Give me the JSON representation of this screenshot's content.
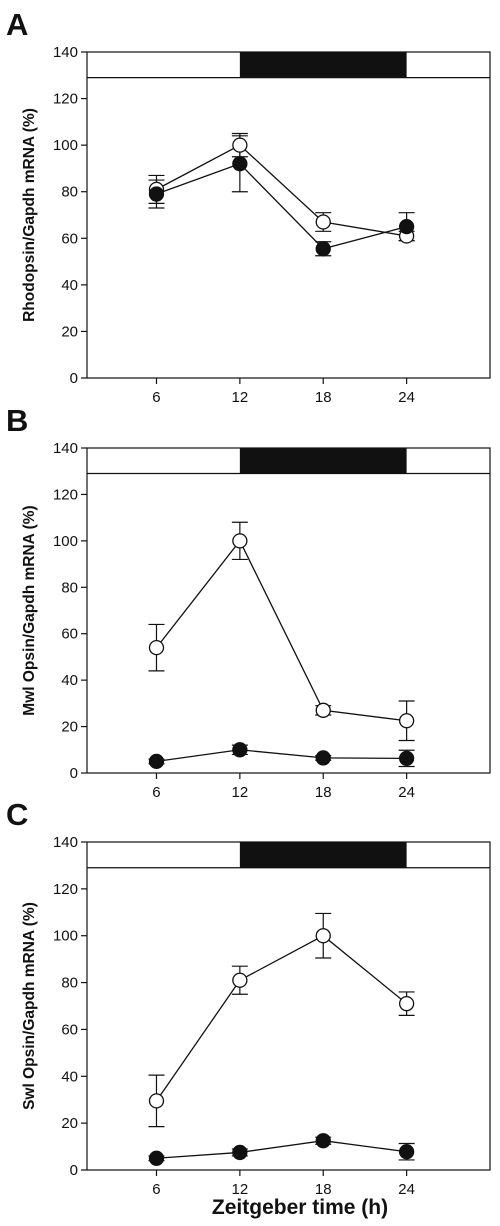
{
  "figure": {
    "xlabel": "Zeitgeber time (h)"
  },
  "chart_data": [
    {
      "panel": "A",
      "type": "line",
      "ylabel": "Rhodopsin/Gapdh mRNA (%)",
      "x": [
        6,
        12,
        18,
        24
      ],
      "xlim": [
        1,
        30
      ],
      "ylim": [
        0,
        140
      ],
      "xticks": [
        "6",
        "12",
        "18",
        "24"
      ],
      "yticks": [
        "0",
        "20",
        "40",
        "60",
        "80",
        "100",
        "120",
        "140"
      ],
      "dark_period": [
        12,
        24
      ],
      "grid": false,
      "series": [
        {
          "marker": "open",
          "values": [
            81,
            100,
            67,
            61
          ],
          "errors": [
            6,
            5,
            4,
            2
          ]
        },
        {
          "marker": "filled",
          "values": [
            79,
            92,
            55.5,
            65
          ],
          "errors": [
            6,
            12,
            3,
            6
          ]
        }
      ]
    },
    {
      "panel": "B",
      "type": "line",
      "ylabel": "Mwl Opsin/Gapdh mRNA (%)",
      "x": [
        6,
        12,
        18,
        24
      ],
      "xlim": [
        1,
        30
      ],
      "ylim": [
        0,
        140
      ],
      "xticks": [
        "6",
        "12",
        "18",
        "24"
      ],
      "yticks": [
        "0",
        "20",
        "40",
        "60",
        "80",
        "100",
        "120",
        "140"
      ],
      "dark_period": [
        12,
        24
      ],
      "grid": false,
      "series": [
        {
          "marker": "open",
          "values": [
            54,
            100,
            27,
            22.5
          ],
          "errors": [
            10,
            8,
            2,
            8.5
          ]
        },
        {
          "marker": "filled",
          "values": [
            5,
            10,
            6.5,
            6.3
          ],
          "errors": [
            1,
            2,
            1,
            3.5
          ]
        }
      ]
    },
    {
      "panel": "C",
      "type": "line",
      "ylabel": "Swl Opsin/Gapdh mRNA (%)",
      "x": [
        6,
        12,
        18,
        24
      ],
      "xlim": [
        1,
        30
      ],
      "ylim": [
        0,
        140
      ],
      "xticks": [
        "6",
        "12",
        "18",
        "24"
      ],
      "yticks": [
        "0",
        "20",
        "40",
        "60",
        "80",
        "100",
        "120",
        "140"
      ],
      "dark_period": [
        12,
        24
      ],
      "grid": false,
      "series": [
        {
          "marker": "open",
          "values": [
            29.5,
            81,
            100,
            71
          ],
          "errors": [
            11,
            6,
            9.5,
            5
          ]
        },
        {
          "marker": "filled",
          "values": [
            5,
            7.5,
            12.5,
            7.8
          ],
          "errors": [
            1,
            1.5,
            1.5,
            3.5
          ]
        }
      ]
    }
  ]
}
